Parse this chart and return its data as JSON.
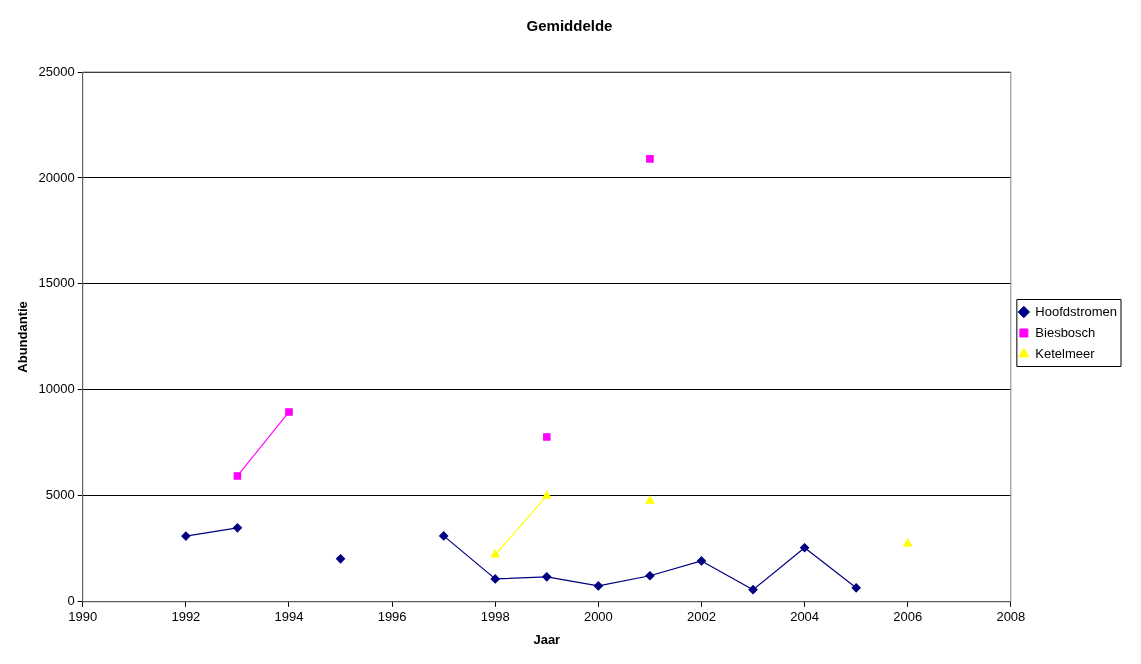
{
  "chart_data": {
    "type": "line",
    "title": "Gemiddelde",
    "xlabel": "Jaar",
    "ylabel": "Abundantie",
    "x": [
      1992,
      1993,
      1994,
      1995,
      1996,
      1997,
      1998,
      1999,
      2000,
      2001,
      2002,
      2003,
      2004,
      2005,
      2006
    ],
    "series": [
      {
        "name": "Hoofdstromen",
        "color": "#000080",
        "marker": "diamond",
        "values": [
          3100,
          3490,
          null,
          2030,
          null,
          3110,
          1080,
          1180,
          750,
          1230,
          1930,
          570,
          2550,
          660,
          null
        ]
      },
      {
        "name": "Biesbosch",
        "color": "#ff00ff",
        "marker": "square",
        "values": [
          null,
          5940,
          8960,
          null,
          null,
          null,
          null,
          7780,
          null,
          20900,
          null,
          null,
          null,
          null,
          null
        ]
      },
      {
        "name": "Ketelmeer",
        "color": "#ffff00",
        "marker": "triangle",
        "values": [
          null,
          null,
          null,
          null,
          null,
          null,
          2220,
          5000,
          null,
          4760,
          null,
          null,
          null,
          null,
          2740
        ]
      }
    ],
    "xlim": [
      1990,
      2008
    ],
    "xticks": [
      1990,
      1992,
      1994,
      1996,
      1998,
      2000,
      2002,
      2004,
      2006,
      2008
    ],
    "ylim": [
      0,
      25000
    ],
    "yticks": [
      0,
      5000,
      10000,
      15000,
      20000,
      25000
    ],
    "grid": "y",
    "legend": "right",
    "line_style": "solid"
  }
}
